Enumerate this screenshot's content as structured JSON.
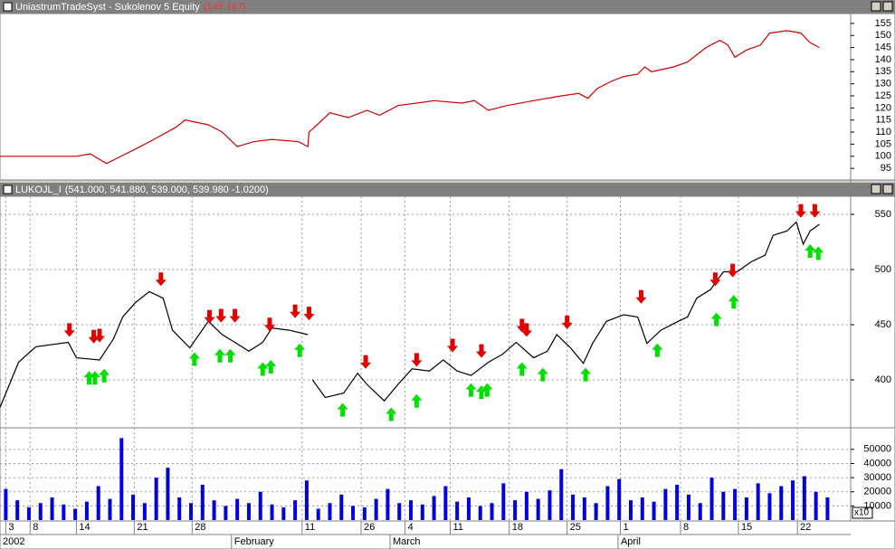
{
  "chart_data": [
    {
      "type": "line",
      "title": "UniastrumTradeSyst - Sukolenov 5 Equity",
      "subtitle": "(145.167)",
      "color": "#cc0000",
      "x": [
        0,
        6.6,
        7.8,
        9.2,
        11.7,
        13.3,
        15.2,
        16.0,
        18.0,
        19.2,
        20.5,
        21.9,
        23.5,
        25.8,
        26.6,
        26.7,
        27.4,
        28.5,
        30.1,
        31.7,
        32.8,
        34.4,
        36.0,
        37.5,
        39.9,
        41.0,
        42.2,
        43.8,
        46.1,
        48.5,
        50.0,
        50.8,
        51.6,
        52.8,
        53.9,
        55.1,
        55.7,
        56.3,
        58.2,
        59.4,
        60.2,
        61.0,
        62.2,
        62.9,
        63.5,
        64.5,
        65.7,
        66.5,
        68.0,
        69.2,
        70.0,
        70.8
      ],
      "values": [
        100,
        100,
        101,
        97,
        103,
        107,
        112,
        115,
        113,
        110,
        104,
        106,
        107,
        106,
        104,
        110,
        113,
        118,
        116,
        119,
        117,
        121,
        122,
        123,
        122,
        123,
        119,
        121,
        123,
        125,
        126,
        124,
        128,
        131,
        133,
        134,
        137,
        135,
        137,
        139,
        142,
        145,
        148,
        146,
        141,
        144,
        146,
        151,
        152,
        151,
        147,
        145
      ],
      "xlim": [
        0,
        73.5
      ],
      "ylim": [
        91.3,
        158.7
      ],
      "yticks": [
        95,
        100,
        105,
        110,
        115,
        120,
        125,
        130,
        135,
        140,
        145,
        150,
        155
      ],
      "grid": false
    },
    {
      "type": "line",
      "title": "LUKOJL_I",
      "subtitle": "(541.000, 541.880, 539.000, 539.980 -1.0200)",
      "color": "#000000",
      "x": [
        0,
        1.6,
        3.1,
        5.9,
        6.6,
        8.6,
        9.8,
        10.6,
        11.7,
        12.9,
        14.1,
        14.9,
        16.4,
        18.0,
        19.2,
        20.3,
        21.5,
        22.7,
        23.5,
        25.0,
        26.6,
        26.8,
        27.0,
        28.1,
        29.7,
        30.9,
        31.7,
        33.2,
        34.4,
        35.6,
        37.1,
        38.3,
        39.5,
        40.7,
        42.2,
        43.4,
        44.6,
        46.1,
        47.3,
        48.1,
        49.3,
        50.4,
        51.2,
        52.4,
        53.9,
        55.1,
        55.9,
        57.1,
        58.6,
        59.4,
        60.2,
        61.4,
        62.5,
        63.7,
        64.9,
        66.1,
        66.8,
        68.0,
        68.8,
        69.4,
        70.0,
        70.8
      ],
      "values": [
        375,
        416,
        430,
        434,
        420,
        418,
        437,
        457,
        470,
        480,
        474,
        445,
        429,
        453,
        441,
        434,
        426,
        434,
        447,
        445,
        441,
        null,
        400,
        384,
        388,
        406,
        396,
        381,
        396,
        410,
        408,
        418,
        408,
        404,
        416,
        423,
        434,
        420,
        426,
        441,
        429,
        415,
        433,
        453,
        459,
        457,
        433,
        445,
        453,
        457,
        474,
        482,
        498,
        498,
        507,
        513,
        531,
        535,
        543,
        523,
        535,
        541
      ],
      "signals": [
        {
          "direction": "down",
          "color": "#e00000",
          "x": [
            6.0,
            8.1,
            8.6,
            13.9,
            18.1,
            19.1,
            20.3,
            23.3,
            25.5,
            26.7,
            31.6,
            36.0,
            39.1,
            41.6,
            45.1,
            45.5,
            49.0,
            55.4,
            61.8,
            63.3,
            69.2,
            70.4
          ],
          "values": [
            439,
            433,
            434,
            485,
            451,
            452,
            452,
            444,
            456,
            454,
            410,
            412,
            425,
            420,
            443,
            439,
            446,
            469,
            485,
            493,
            547,
            547
          ]
        },
        {
          "direction": "up",
          "color": "#00e000",
          "x": [
            7.7,
            8.2,
            9.0,
            16.8,
            19.0,
            19.9,
            22.7,
            23.4,
            25.9,
            29.6,
            33.8,
            36.0,
            40.7,
            41.6,
            42.1,
            45.1,
            46.9,
            50.6,
            56.8,
            61.9,
            63.4,
            70.0,
            70.7
          ],
          "values": [
            408,
            408,
            410,
            425,
            428,
            428,
            416,
            418,
            433,
            379,
            375,
            387,
            397,
            395,
            397,
            416,
            411,
            411,
            433,
            461,
            477,
            523,
            521
          ]
        }
      ],
      "xlim": [
        0,
        73.5
      ],
      "ylim": [
        359,
        565.6
      ],
      "yticks": [
        400,
        450,
        500,
        550
      ],
      "grid": true
    },
    {
      "type": "bar",
      "color": "#0000e0",
      "multiplier": "x10",
      "x": [
        0.5,
        1.5,
        2.5,
        3.5,
        4.5,
        5.5,
        6.5,
        7.5,
        8.5,
        9.5,
        10.5,
        11.5,
        12.5,
        13.5,
        14.5,
        15.5,
        16.5,
        17.5,
        18.5,
        19.5,
        20.5,
        21.5,
        22.5,
        23.5,
        24.5,
        25.5,
        26.5,
        27.5,
        28.5,
        29.5,
        30.5,
        31.5,
        32.5,
        33.5,
        34.5,
        35.5,
        36.5,
        37.5,
        38.5,
        39.5,
        40.5,
        41.5,
        42.5,
        43.5,
        44.5,
        45.5,
        46.5,
        47.5,
        48.5,
        49.5,
        50.5,
        51.5,
        52.5,
        53.5,
        54.5,
        55.5,
        56.5,
        57.5,
        58.5,
        59.5,
        60.5,
        61.5,
        62.5,
        63.5,
        64.5,
        65.5,
        66.5,
        67.5,
        68.5,
        69.5,
        70.5,
        71.5
      ],
      "values": [
        22000,
        14000,
        9000,
        12000,
        16000,
        11000,
        8000,
        13000,
        24000,
        15000,
        58000,
        18000,
        12000,
        30000,
        37000,
        16000,
        12000,
        25000,
        14000,
        10000,
        15000,
        12000,
        20000,
        11000,
        9000,
        14000,
        28000,
        8000,
        12000,
        18000,
        10000,
        9000,
        15000,
        22000,
        12000,
        14000,
        11000,
        17000,
        24000,
        13000,
        16000,
        10000,
        12000,
        26000,
        14000,
        20000,
        15000,
        21000,
        36000,
        18000,
        16000,
        12000,
        24000,
        29000,
        14000,
        16000,
        13000,
        22000,
        25000,
        18000,
        12000,
        30000,
        20000,
        22000,
        16000,
        26000,
        19000,
        24000,
        28000,
        31000,
        20000,
        16000
      ],
      "xlim": [
        0,
        73.5
      ],
      "ylim": [
        0,
        64600
      ],
      "yticks": [
        10000,
        20000,
        30000,
        40000,
        50000
      ],
      "grid": true,
      "xticks": [
        {
          "value": 0.5,
          "label": "3"
        },
        {
          "value": 2.6,
          "label": "8"
        },
        {
          "value": 6.6,
          "label": "14"
        },
        {
          "value": 11.6,
          "label": "21"
        },
        {
          "value": 16.6,
          "label": "28"
        },
        {
          "value": 26.1,
          "label": "11"
        },
        {
          "value": 31.2,
          "label": "26"
        },
        {
          "value": 35.0,
          "label": "4"
        },
        {
          "value": 38.9,
          "label": "11"
        },
        {
          "value": 44.0,
          "label": "18"
        },
        {
          "value": 49.0,
          "label": "25"
        },
        {
          "value": 53.6,
          "label": "1"
        },
        {
          "value": 58.8,
          "label": "8"
        },
        {
          "value": 63.8,
          "label": "15"
        },
        {
          "value": 68.9,
          "label": "22"
        }
      ],
      "months": [
        {
          "value": 0,
          "label": "2002"
        },
        {
          "value": 20.0,
          "label": "February"
        },
        {
          "value": 33.7,
          "label": "March"
        },
        {
          "value": 53.4,
          "label": "April"
        }
      ]
    }
  ]
}
